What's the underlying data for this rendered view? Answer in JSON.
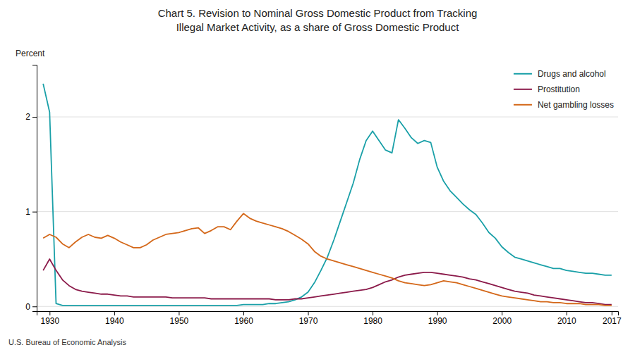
{
  "chart_data": {
    "type": "line",
    "title": "Chart 5. Revision to Nominal Gross Domestic Product from Tracking\nIllegal Market Activity, as a share of Gross Domestic Product",
    "ylabel": "Percent",
    "footnote": "U.S. Bureau of Economic Analysis",
    "x": [
      1929,
      1930,
      1931,
      1932,
      1933,
      1934,
      1935,
      1936,
      1937,
      1938,
      1939,
      1940,
      1941,
      1942,
      1943,
      1944,
      1945,
      1946,
      1947,
      1948,
      1949,
      1950,
      1951,
      1952,
      1953,
      1954,
      1955,
      1956,
      1957,
      1958,
      1959,
      1960,
      1961,
      1962,
      1963,
      1964,
      1965,
      1966,
      1967,
      1968,
      1969,
      1970,
      1971,
      1972,
      1973,
      1974,
      1975,
      1976,
      1977,
      1978,
      1979,
      1980,
      1981,
      1982,
      1983,
      1984,
      1985,
      1986,
      1987,
      1988,
      1989,
      1990,
      1991,
      1992,
      1993,
      1994,
      1995,
      1996,
      1997,
      1998,
      1999,
      2000,
      2001,
      2002,
      2003,
      2004,
      2005,
      2006,
      2007,
      2008,
      2009,
      2010,
      2011,
      2012,
      2013,
      2014,
      2015,
      2016,
      2017
    ],
    "series": [
      {
        "name": "Drugs and alcohol",
        "color": "#1aa0a8",
        "values": [
          2.35,
          2.05,
          0.03,
          0.01,
          0.01,
          0.01,
          0.01,
          0.01,
          0.01,
          0.01,
          0.01,
          0.01,
          0.01,
          0.01,
          0.01,
          0.01,
          0.01,
          0.01,
          0.01,
          0.01,
          0.01,
          0.01,
          0.01,
          0.01,
          0.01,
          0.01,
          0.01,
          0.01,
          0.01,
          0.01,
          0.01,
          0.02,
          0.02,
          0.02,
          0.02,
          0.03,
          0.03,
          0.04,
          0.05,
          0.07,
          0.1,
          0.15,
          0.25,
          0.38,
          0.52,
          0.7,
          0.9,
          1.1,
          1.3,
          1.55,
          1.75,
          1.85,
          1.75,
          1.65,
          1.62,
          1.97,
          1.88,
          1.78,
          1.72,
          1.75,
          1.73,
          1.47,
          1.32,
          1.22,
          1.15,
          1.08,
          1.02,
          0.97,
          0.88,
          0.78,
          0.72,
          0.63,
          0.57,
          0.52,
          0.5,
          0.48,
          0.46,
          0.44,
          0.42,
          0.4,
          0.4,
          0.38,
          0.37,
          0.36,
          0.35,
          0.35,
          0.34,
          0.33,
          0.33
        ]
      },
      {
        "name": "Prostitution",
        "color": "#8b1a4a",
        "values": [
          0.38,
          0.5,
          0.38,
          0.28,
          0.22,
          0.18,
          0.16,
          0.15,
          0.14,
          0.13,
          0.13,
          0.12,
          0.11,
          0.11,
          0.1,
          0.1,
          0.1,
          0.1,
          0.1,
          0.1,
          0.09,
          0.09,
          0.09,
          0.09,
          0.09,
          0.09,
          0.08,
          0.08,
          0.08,
          0.08,
          0.08,
          0.08,
          0.08,
          0.08,
          0.08,
          0.08,
          0.07,
          0.07,
          0.07,
          0.08,
          0.08,
          0.09,
          0.1,
          0.11,
          0.12,
          0.13,
          0.14,
          0.15,
          0.16,
          0.17,
          0.18,
          0.2,
          0.23,
          0.26,
          0.28,
          0.31,
          0.33,
          0.34,
          0.35,
          0.36,
          0.36,
          0.35,
          0.34,
          0.33,
          0.32,
          0.31,
          0.29,
          0.28,
          0.26,
          0.24,
          0.22,
          0.2,
          0.18,
          0.16,
          0.15,
          0.14,
          0.12,
          0.11,
          0.1,
          0.09,
          0.08,
          0.07,
          0.06,
          0.05,
          0.04,
          0.04,
          0.03,
          0.02,
          0.02
        ]
      },
      {
        "name": "Net gambling losses",
        "color": "#d4681a",
        "values": [
          0.72,
          0.76,
          0.73,
          0.66,
          0.62,
          0.68,
          0.73,
          0.76,
          0.73,
          0.72,
          0.75,
          0.72,
          0.68,
          0.65,
          0.62,
          0.62,
          0.65,
          0.7,
          0.73,
          0.76,
          0.77,
          0.78,
          0.8,
          0.82,
          0.83,
          0.77,
          0.8,
          0.84,
          0.84,
          0.81,
          0.9,
          0.98,
          0.93,
          0.9,
          0.88,
          0.86,
          0.84,
          0.82,
          0.79,
          0.75,
          0.71,
          0.66,
          0.58,
          0.53,
          0.5,
          0.48,
          0.46,
          0.44,
          0.42,
          0.4,
          0.38,
          0.36,
          0.34,
          0.32,
          0.3,
          0.27,
          0.25,
          0.24,
          0.23,
          0.22,
          0.23,
          0.25,
          0.27,
          0.26,
          0.25,
          0.23,
          0.21,
          0.19,
          0.17,
          0.15,
          0.13,
          0.11,
          0.1,
          0.09,
          0.08,
          0.07,
          0.06,
          0.05,
          0.05,
          0.04,
          0.04,
          0.03,
          0.03,
          0.03,
          0.02,
          0.02,
          0.02,
          0.01,
          0.01
        ]
      }
    ],
    "xlim": [
      1928,
      2018
    ],
    "xticks": [
      1930,
      1940,
      1950,
      1960,
      1970,
      1980,
      1990,
      2000,
      2010,
      2017
    ],
    "ylim": [
      -0.05,
      2.55
    ],
    "yticks": [
      0,
      1,
      2
    ],
    "grid": true,
    "legend": "top-right"
  }
}
